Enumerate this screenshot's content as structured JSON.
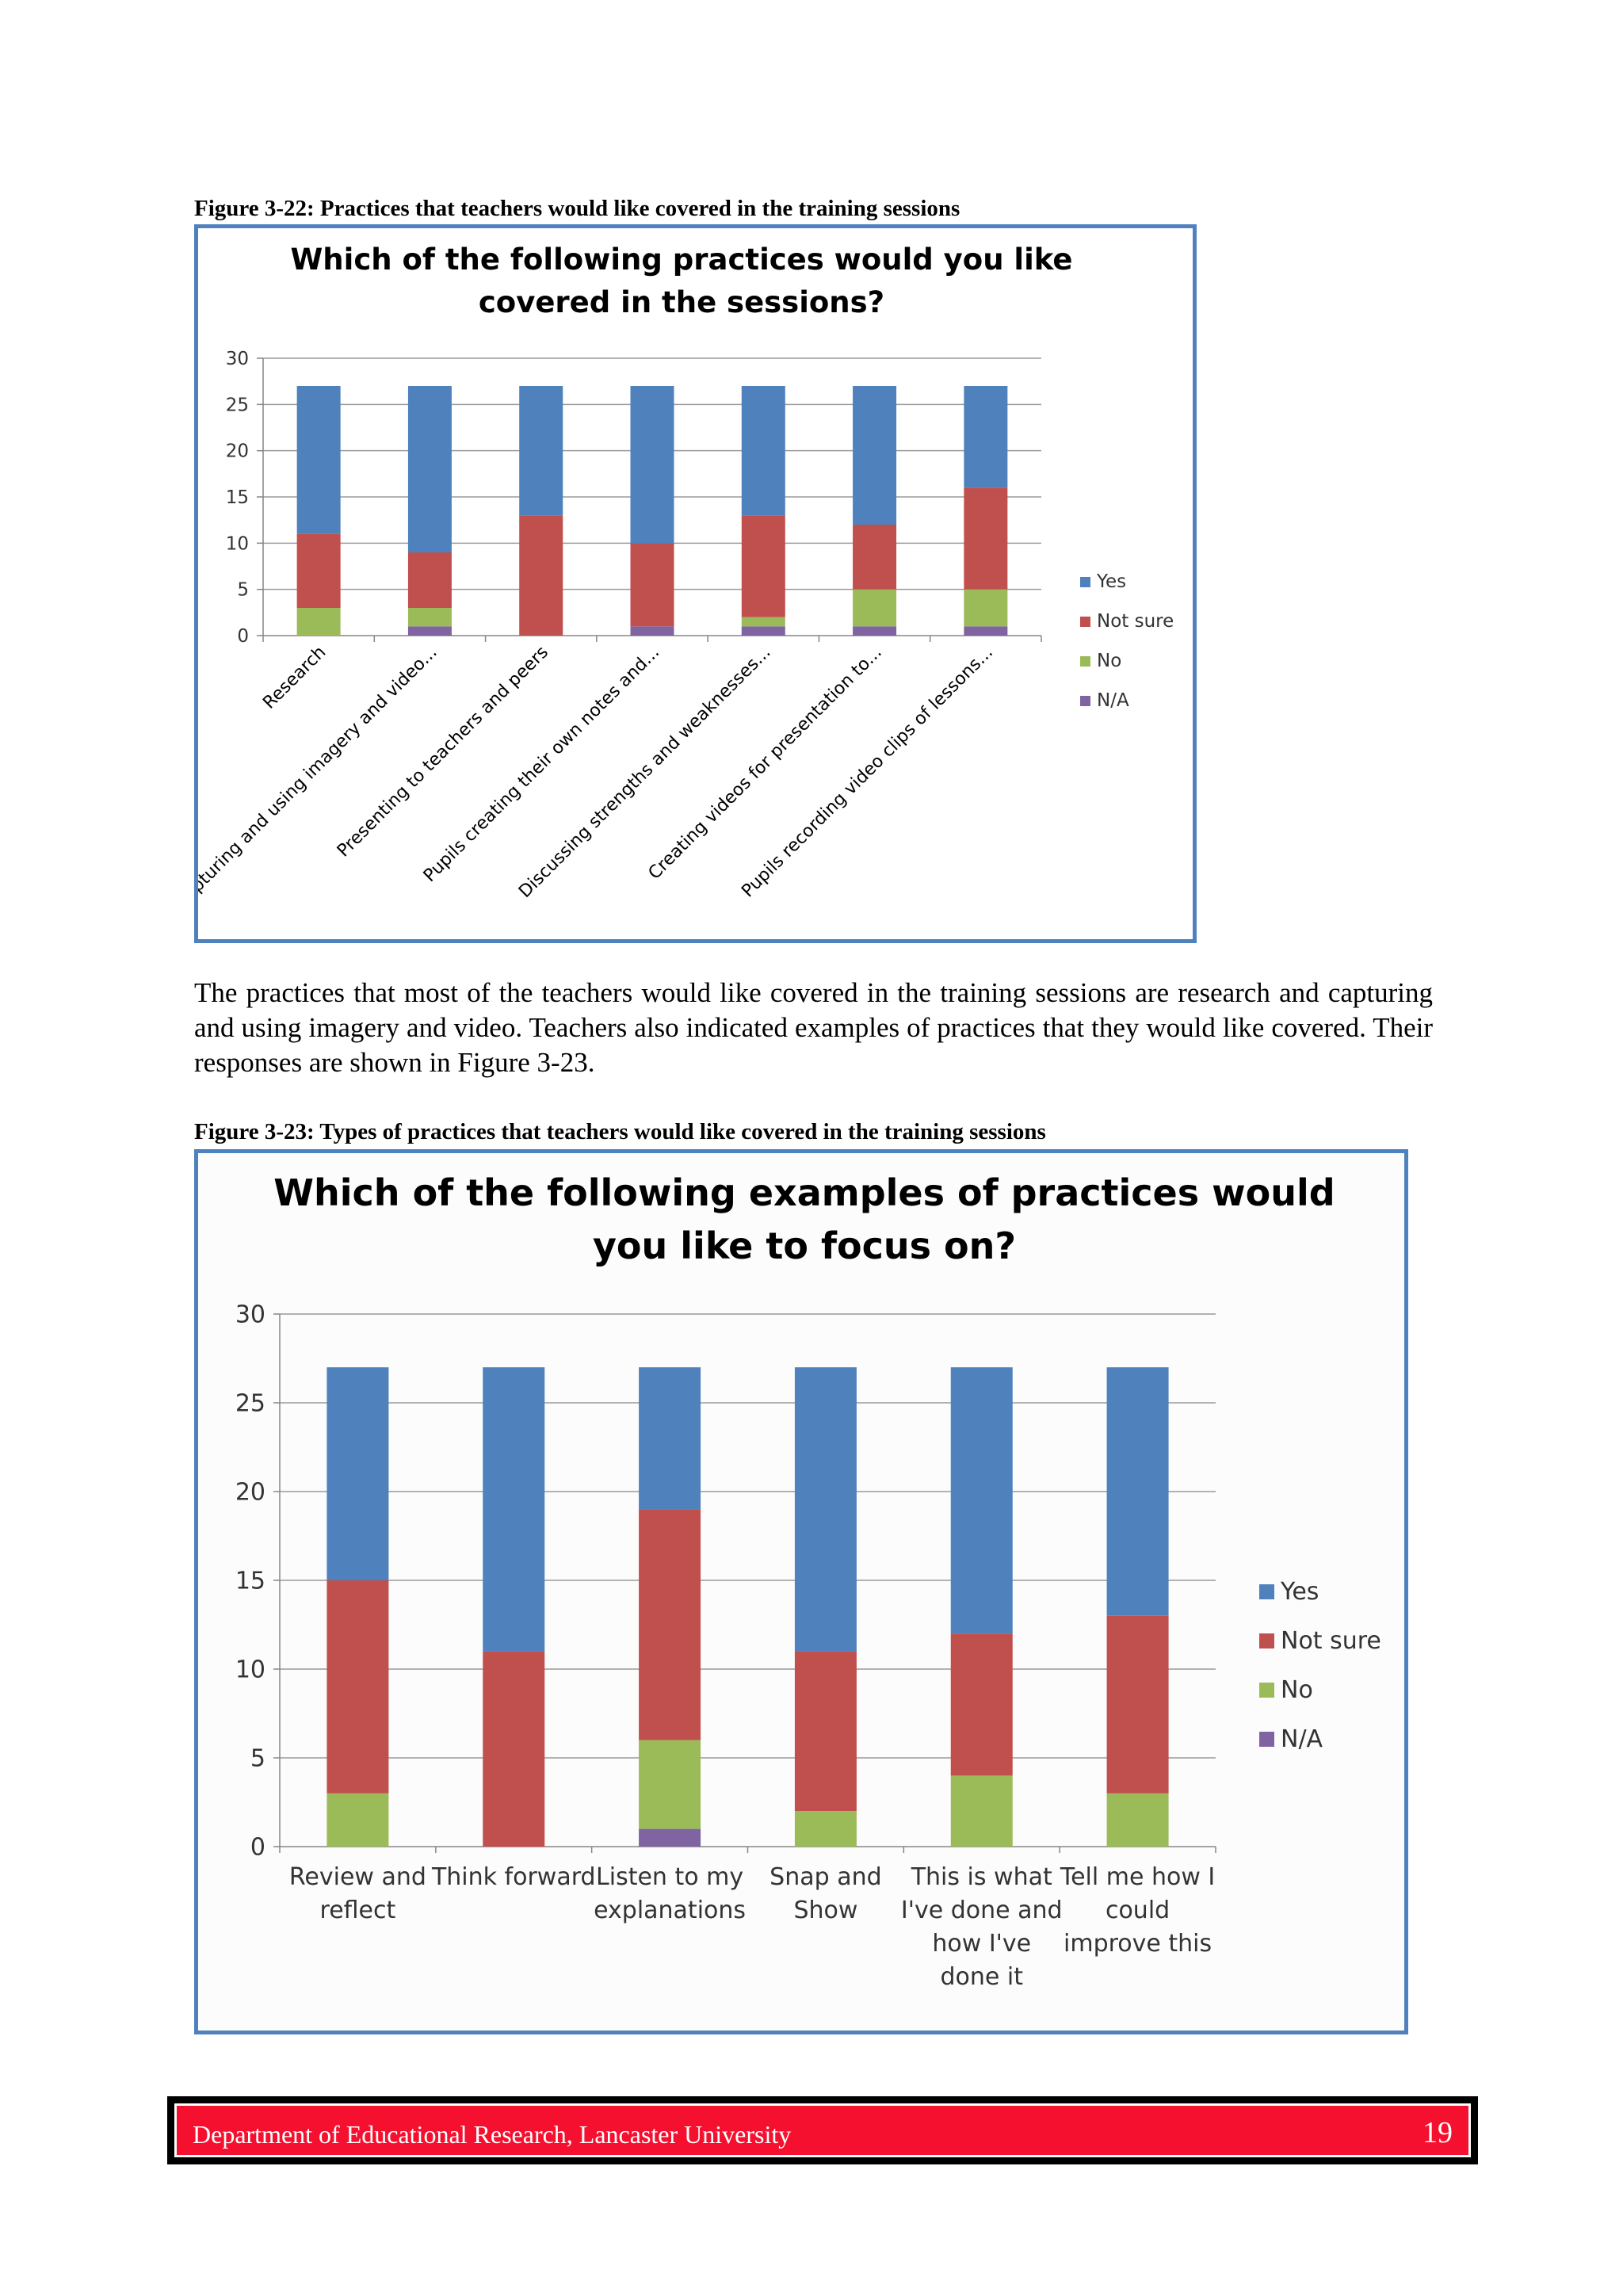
{
  "captions": {
    "fig22": "Figure 3-22: Practices that teachers would like covered in the training sessions",
    "fig23": "Figure 3-23: Types of practices that teachers would like covered in the training sessions"
  },
  "body_text": "The practices that most of the teachers would like covered in the training sessions are research and capturing and using imagery and video. Teachers also indicated examples of practices that they would like covered. Their responses are shown in Figure 3-23.",
  "footer": {
    "text": "Department of Educational Research, Lancaster University",
    "page": "19"
  },
  "colors": {
    "Yes": "#4f81bd",
    "Not sure": "#c0504d",
    "No": "#9bbb59",
    "N/A": "#8064a2",
    "frame": "#4f81bd"
  },
  "chart_data": [
    {
      "type": "bar",
      "stacked": true,
      "title": [
        "Which of the following practices would you like",
        "covered in the sessions?"
      ],
      "ylim": [
        0,
        30
      ],
      "yticks": [
        0,
        5,
        10,
        15,
        20,
        25,
        30
      ],
      "grid": true,
      "legend": "right",
      "categories": [
        "Research",
        "Capturing and using imagery and video...",
        "Presenting to teachers and peers",
        "Pupils creating their own notes and...",
        "Discussing strengths and weaknesses...",
        "Creating videos for presentation to...",
        "Pupils recording video clips of lessons..."
      ],
      "series": [
        {
          "name": "N/A",
          "values": [
            0,
            1,
            0,
            1,
            1,
            1,
            1
          ]
        },
        {
          "name": "No",
          "values": [
            3,
            2,
            0,
            0,
            1,
            4,
            4
          ]
        },
        {
          "name": "Not sure",
          "values": [
            8,
            6,
            13,
            9,
            11,
            7,
            11
          ]
        },
        {
          "name": "Yes",
          "values": [
            16,
            18,
            14,
            17,
            14,
            15,
            11
          ]
        }
      ],
      "legend_order": [
        "Yes",
        "Not sure",
        "No",
        "N/A"
      ]
    },
    {
      "type": "bar",
      "stacked": true,
      "title": [
        "Which of the following examples of practices would",
        "you like to focus on?"
      ],
      "ylim": [
        0,
        30
      ],
      "yticks": [
        0,
        5,
        10,
        15,
        20,
        25,
        30
      ],
      "grid": true,
      "legend": "right",
      "categories": [
        [
          "Review and",
          "reflect"
        ],
        [
          "Think forward"
        ],
        [
          "Listen to my",
          "explanations"
        ],
        [
          "Snap and",
          "Show"
        ],
        [
          "This is what",
          "I've done and",
          "how I've",
          "done it"
        ],
        [
          "Tell me how I",
          "could",
          "improve this"
        ]
      ],
      "series": [
        {
          "name": "N/A",
          "values": [
            0,
            0,
            1,
            0,
            0,
            0
          ]
        },
        {
          "name": "No",
          "values": [
            3,
            0,
            5,
            2,
            4,
            3
          ]
        },
        {
          "name": "Not sure",
          "values": [
            12,
            11,
            13,
            9,
            8,
            10
          ]
        },
        {
          "name": "Yes",
          "values": [
            12,
            16,
            8,
            16,
            15,
            14
          ]
        }
      ],
      "legend_order": [
        "Yes",
        "Not sure",
        "No",
        "N/A"
      ]
    }
  ]
}
